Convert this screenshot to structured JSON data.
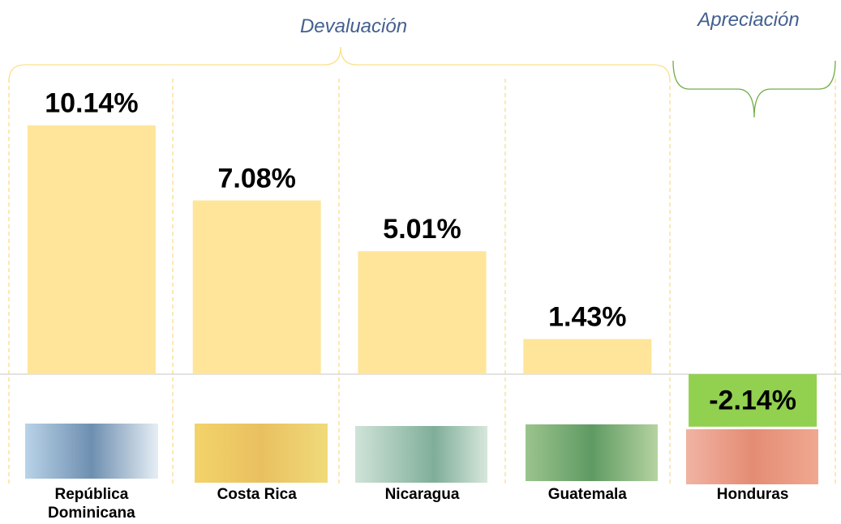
{
  "chart_data": {
    "type": "bar",
    "annotations": [
      "Devaluación",
      "Apreciación"
    ],
    "categories": [
      "República Dominicana",
      "Costa Rica",
      "Nicaragua",
      "Guatemala",
      "Honduras"
    ],
    "values": [
      10.14,
      7.08,
      5.01,
      1.43,
      -2.14
    ],
    "value_labels": [
      "10.14%",
      "7.08%",
      "5.01%",
      "1.43%",
      "-2.14%"
    ],
    "colors": [
      "#fee599",
      "#fee599",
      "#fee599",
      "#fee599",
      "#92d050"
    ]
  }
}
